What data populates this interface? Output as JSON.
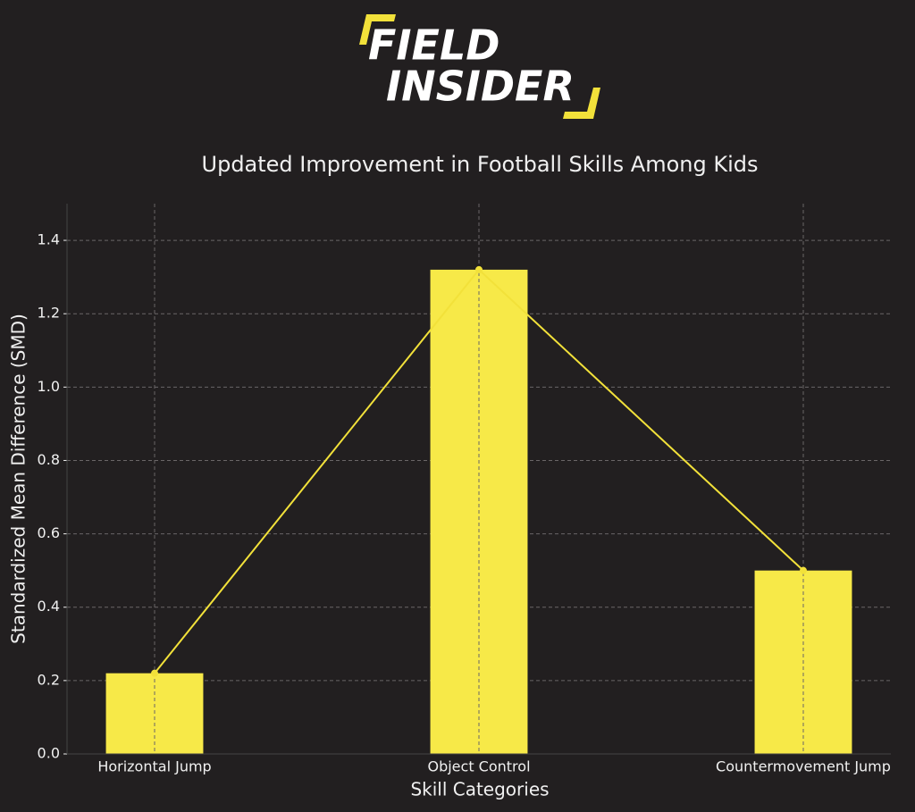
{
  "logo": {
    "line1": "FIELD",
    "line2": "INSIDER"
  },
  "chart_data": {
    "type": "bar",
    "title": "Updated Improvement in Football Skills Among Kids",
    "x_label": "Skill Categories",
    "y_label": "Standardized Mean Difference (SMD)",
    "categories": [
      "Horizontal Jump",
      "Object Control",
      "Countermovement Jump"
    ],
    "values": [
      0.22,
      1.32,
      0.5
    ],
    "color": "#f7e948",
    "line_color": "#f2e13a",
    "line_overlay": true,
    "ylim": [
      0,
      1.5
    ],
    "yticks": [
      {
        "value": 0,
        "label": "0.0"
      },
      0.2,
      0.4,
      0.6,
      0.8,
      {
        "value": 1,
        "label": "1.0"
      },
      1.2,
      1.4
    ],
    "grid": true
  }
}
